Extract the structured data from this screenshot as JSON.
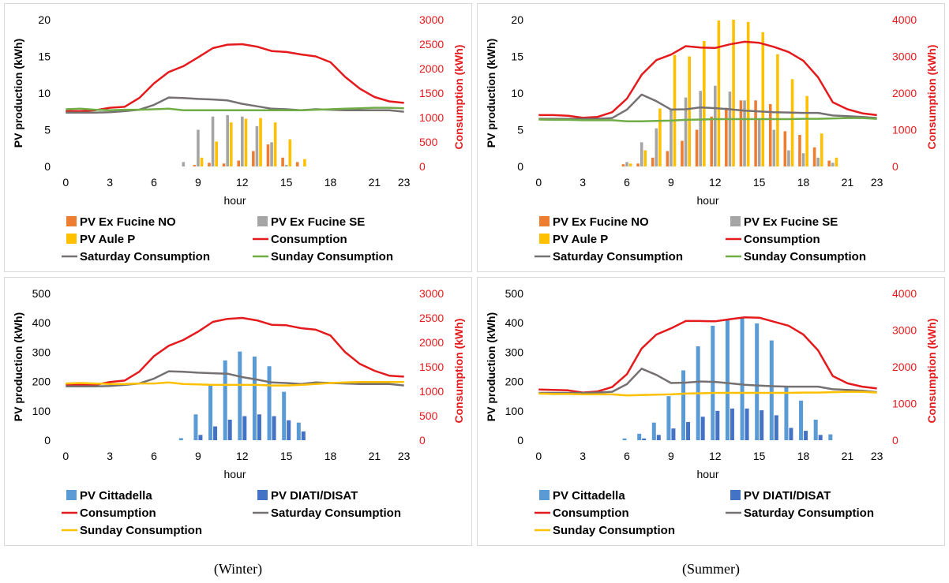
{
  "captions": {
    "left": "(Winter)",
    "right": "(Summer)"
  },
  "chart_data": [
    {
      "type": "bar",
      "xlabel": "hour",
      "ylabel": "PV production (kWh)",
      "y2label": "Consumption (kWh)",
      "ylim": [
        0,
        20
      ],
      "yticks": [
        0,
        5,
        10,
        15,
        20
      ],
      "y2lim": [
        0,
        3000
      ],
      "y2ticks": [
        0,
        500,
        1000,
        1500,
        2000,
        2500,
        3000
      ],
      "xticks": [
        0,
        3,
        6,
        9,
        12,
        15,
        18,
        21,
        23
      ],
      "hours": [
        0,
        1,
        2,
        3,
        4,
        5,
        6,
        7,
        8,
        9,
        10,
        11,
        12,
        13,
        14,
        15,
        16,
        17,
        18,
        19,
        20,
        21,
        22,
        23
      ],
      "legend_columns": 2,
      "legend_order": [
        "PV Ex Fucine NO",
        "PV Ex Fucine SE",
        "PV Aule P",
        "Consumption",
        "Saturday Consumption",
        "Sunday Consumption"
      ],
      "series": [
        {
          "name": "PV Ex Fucine NO",
          "kind": "bar",
          "axis": "left",
          "color": "#ed7d31",
          "values": [
            0,
            0,
            0,
            0,
            0,
            0,
            0,
            0,
            0,
            0.2,
            0.5,
            0.4,
            0.8,
            2.1,
            3.0,
            1.2,
            0.6,
            0,
            0,
            0,
            0,
            0,
            0,
            0
          ]
        },
        {
          "name": "PV Ex Fucine SE",
          "kind": "bar",
          "axis": "left",
          "color": "#a5a5a5",
          "values": [
            0,
            0,
            0,
            0,
            0,
            0,
            0,
            0,
            0.6,
            5.0,
            6.8,
            7.0,
            6.8,
            5.5,
            3.3,
            0.2,
            0,
            0,
            0,
            0,
            0,
            0,
            0,
            0
          ]
        },
        {
          "name": "PV Aule P",
          "kind": "bar",
          "axis": "left",
          "color": "#ffc000",
          "values": [
            0,
            0,
            0,
            0,
            0,
            0,
            0,
            0,
            0,
            1.2,
            3.4,
            6.0,
            6.5,
            6.6,
            6.0,
            3.7,
            1.0,
            0,
            0,
            0,
            0,
            0,
            0,
            0
          ]
        },
        {
          "name": "Consumption",
          "kind": "line",
          "axis": "right",
          "color": "#e41a1c",
          "values": [
            1130,
            1130,
            1150,
            1200,
            1220,
            1400,
            1700,
            1930,
            2050,
            2230,
            2420,
            2490,
            2500,
            2450,
            2360,
            2340,
            2290,
            2250,
            2130,
            1830,
            1590,
            1420,
            1330,
            1300
          ]
        },
        {
          "name": "Saturday Consumption",
          "kind": "line",
          "axis": "right",
          "color": "#767171",
          "values": [
            1100,
            1100,
            1100,
            1110,
            1130,
            1160,
            1260,
            1410,
            1400,
            1380,
            1370,
            1350,
            1280,
            1230,
            1180,
            1170,
            1150,
            1170,
            1160,
            1150,
            1150,
            1150,
            1150,
            1120
          ]
        },
        {
          "name": "Sunday Consumption",
          "kind": "line",
          "axis": "right",
          "color": "#70ad47",
          "values": [
            1170,
            1180,
            1160,
            1150,
            1160,
            1160,
            1170,
            1180,
            1150,
            1150,
            1150,
            1150,
            1150,
            1150,
            1150,
            1150,
            1150,
            1160,
            1170,
            1180,
            1190,
            1200,
            1200,
            1190
          ]
        }
      ]
    },
    {
      "type": "bar",
      "xlabel": "hour",
      "ylabel": "PV production (kWh)",
      "y2label": "Consumption (kWh)",
      "ylim": [
        0,
        20
      ],
      "yticks": [
        0,
        5,
        10,
        15,
        20
      ],
      "y2lim": [
        0,
        4000
      ],
      "y2ticks": [
        0,
        1000,
        2000,
        3000,
        4000
      ],
      "xticks": [
        0,
        3,
        6,
        9,
        12,
        15,
        18,
        21,
        23
      ],
      "hours": [
        0,
        1,
        2,
        3,
        4,
        5,
        6,
        7,
        8,
        9,
        10,
        11,
        12,
        13,
        14,
        15,
        16,
        17,
        18,
        19,
        20,
        21,
        22,
        23
      ],
      "legend_columns": 2,
      "legend_order": [
        "PV Ex Fucine NO",
        "PV Ex Fucine SE",
        "PV Aule P",
        "Consumption",
        "Saturday Consumption",
        "Sunday Consumption"
      ],
      "series": [
        {
          "name": "PV Ex Fucine NO",
          "kind": "bar",
          "axis": "left",
          "color": "#ed7d31",
          "values": [
            0,
            0,
            0,
            0,
            0,
            0,
            0.3,
            0.4,
            1.2,
            2.1,
            3.5,
            5.0,
            6.8,
            8.0,
            9.0,
            9.0,
            8.5,
            4.8,
            4.3,
            2.6,
            0.8,
            0,
            0,
            0
          ]
        },
        {
          "name": "PV Ex Fucine SE",
          "kind": "bar",
          "axis": "left",
          "color": "#a5a5a5",
          "values": [
            0,
            0,
            0,
            0,
            0,
            0,
            0.6,
            3.3,
            5.2,
            7.7,
            9.4,
            10.3,
            11.0,
            10.2,
            9.0,
            6.5,
            5.0,
            2.2,
            1.8,
            1.2,
            0.5,
            0,
            0,
            0
          ]
        },
        {
          "name": "PV Aule P",
          "kind": "bar",
          "axis": "left",
          "color": "#ffc000",
          "values": [
            0,
            0,
            0,
            0,
            0,
            0,
            0.4,
            2.2,
            7.9,
            15.2,
            15.0,
            17.1,
            19.9,
            20.0,
            19.7,
            18.3,
            15.3,
            11.9,
            9.6,
            4.5,
            1.2,
            0,
            0,
            0
          ]
        },
        {
          "name": "Consumption",
          "kind": "line",
          "axis": "right",
          "color": "#e41a1c",
          "values": [
            1400,
            1400,
            1380,
            1330,
            1350,
            1480,
            1850,
            2500,
            2900,
            3050,
            3280,
            3240,
            3230,
            3330,
            3400,
            3370,
            3260,
            3120,
            2880,
            2430,
            1750,
            1560,
            1450,
            1400
          ]
        },
        {
          "name": "Saturday Consumption",
          "kind": "line",
          "axis": "right",
          "color": "#767171",
          "values": [
            1300,
            1300,
            1300,
            1300,
            1300,
            1320,
            1550,
            1960,
            1780,
            1550,
            1560,
            1610,
            1590,
            1560,
            1520,
            1500,
            1480,
            1470,
            1460,
            1460,
            1390,
            1370,
            1350,
            1320
          ]
        },
        {
          "name": "Sunday Consumption",
          "kind": "line",
          "axis": "right",
          "color": "#70ad47",
          "values": [
            1280,
            1270,
            1270,
            1260,
            1260,
            1260,
            1230,
            1230,
            1240,
            1250,
            1270,
            1280,
            1290,
            1290,
            1290,
            1290,
            1290,
            1290,
            1300,
            1300,
            1310,
            1320,
            1320,
            1300
          ]
        }
      ]
    },
    {
      "type": "bar",
      "xlabel": "hour",
      "ylabel": "PV production (kWh)",
      "y2label": "Consumption (kWh)",
      "ylim": [
        0,
        500
      ],
      "yticks": [
        0,
        100,
        200,
        300,
        400,
        500
      ],
      "y2lim": [
        0,
        3000
      ],
      "y2ticks": [
        0,
        500,
        1000,
        1500,
        2000,
        2500,
        3000
      ],
      "xticks": [
        0,
        3,
        6,
        9,
        12,
        15,
        18,
        21,
        23
      ],
      "hours": [
        0,
        1,
        2,
        3,
        4,
        5,
        6,
        7,
        8,
        9,
        10,
        11,
        12,
        13,
        14,
        15,
        16,
        17,
        18,
        19,
        20,
        21,
        22,
        23
      ],
      "legend_columns": 2,
      "legend_order": [
        "PV Cittadella",
        "PV DIATI/DISAT",
        "Consumption",
        "Saturday Consumption",
        "Sunday Consumption"
      ],
      "series": [
        {
          "name": "PV Cittadella",
          "kind": "bar",
          "axis": "left",
          "color": "#5b9bd5",
          "values": [
            0,
            0,
            0,
            0,
            0,
            0,
            0,
            0,
            7,
            88,
            188,
            272,
            302,
            285,
            252,
            165,
            60,
            0,
            0,
            0,
            0,
            0,
            0,
            0
          ]
        },
        {
          "name": "PV DIATI/DISAT",
          "kind": "bar",
          "axis": "left",
          "color": "#4472c4",
          "values": [
            0,
            0,
            0,
            0,
            0,
            0,
            0,
            0,
            0,
            18,
            47,
            70,
            82,
            88,
            82,
            68,
            30,
            0,
            0,
            0,
            0,
            0,
            0,
            0
          ]
        },
        {
          "name": "Consumption",
          "kind": "line",
          "axis": "right",
          "color": "#e41a1c",
          "values": [
            1140,
            1140,
            1130,
            1190,
            1220,
            1400,
            1720,
            1930,
            2050,
            2220,
            2420,
            2480,
            2500,
            2450,
            2360,
            2350,
            2290,
            2260,
            2140,
            1800,
            1560,
            1420,
            1320,
            1300
          ]
        },
        {
          "name": "Saturday Consumption",
          "kind": "line",
          "axis": "right",
          "color": "#767171",
          "values": [
            1100,
            1100,
            1100,
            1110,
            1130,
            1160,
            1260,
            1410,
            1400,
            1380,
            1370,
            1360,
            1290,
            1240,
            1180,
            1170,
            1150,
            1180,
            1170,
            1160,
            1150,
            1150,
            1150,
            1120
          ]
        },
        {
          "name": "Sunday Consumption",
          "kind": "line",
          "axis": "right",
          "color": "#ffc000",
          "values": [
            1160,
            1170,
            1160,
            1150,
            1150,
            1160,
            1160,
            1180,
            1150,
            1140,
            1130,
            1130,
            1130,
            1130,
            1120,
            1120,
            1130,
            1150,
            1170,
            1180,
            1190,
            1190,
            1190,
            1190
          ]
        }
      ]
    },
    {
      "type": "bar",
      "xlabel": "hour",
      "ylabel": "PV production (kWh)",
      "y2label": "Consumption (kWh)",
      "ylim": [
        0,
        500
      ],
      "yticks": [
        0,
        100,
        200,
        300,
        400,
        500
      ],
      "y2lim": [
        0,
        4000
      ],
      "y2ticks": [
        0,
        1000,
        2000,
        3000,
        4000
      ],
      "xticks": [
        0,
        3,
        6,
        9,
        12,
        15,
        18,
        21,
        23
      ],
      "hours": [
        0,
        1,
        2,
        3,
        4,
        5,
        6,
        7,
        8,
        9,
        10,
        11,
        12,
        13,
        14,
        15,
        16,
        17,
        18,
        19,
        20,
        21,
        22,
        23
      ],
      "legend_columns": 2,
      "legend_order": [
        "PV Cittadella",
        "PV DIATI/DISAT",
        "Consumption",
        "Saturday Consumption",
        "Sunday Consumption"
      ],
      "series": [
        {
          "name": "PV Cittadella",
          "kind": "bar",
          "axis": "left",
          "color": "#5b9bd5",
          "values": [
            0,
            0,
            0,
            0,
            0,
            0,
            6,
            22,
            60,
            150,
            238,
            320,
            390,
            410,
            418,
            398,
            340,
            185,
            135,
            70,
            20,
            0,
            0,
            0
          ]
        },
        {
          "name": "PV DIATI/DISAT",
          "kind": "bar",
          "axis": "left",
          "color": "#4472c4",
          "values": [
            0,
            0,
            0,
            0,
            0,
            0,
            0,
            6,
            18,
            40,
            62,
            80,
            100,
            108,
            108,
            102,
            85,
            42,
            32,
            18,
            0,
            0,
            0,
            0
          ]
        },
        {
          "name": "Consumption",
          "kind": "line",
          "axis": "right",
          "color": "#e41a1c",
          "values": [
            1380,
            1370,
            1360,
            1300,
            1330,
            1450,
            1800,
            2500,
            2880,
            3050,
            3250,
            3250,
            3240,
            3300,
            3350,
            3340,
            3230,
            3120,
            2880,
            2450,
            1750,
            1550,
            1460,
            1410
          ]
        },
        {
          "name": "Saturday Consumption",
          "kind": "line",
          "axis": "right",
          "color": "#767171",
          "values": [
            1290,
            1290,
            1290,
            1290,
            1300,
            1320,
            1530,
            1950,
            1780,
            1560,
            1570,
            1600,
            1590,
            1550,
            1510,
            1490,
            1470,
            1460,
            1460,
            1460,
            1390,
            1370,
            1350,
            1310
          ]
        },
        {
          "name": "Sunday Consumption",
          "kind": "line",
          "axis": "right",
          "color": "#ffc000",
          "values": [
            1270,
            1260,
            1260,
            1250,
            1250,
            1250,
            1220,
            1230,
            1240,
            1250,
            1270,
            1280,
            1290,
            1290,
            1290,
            1290,
            1290,
            1290,
            1300,
            1300,
            1310,
            1320,
            1320,
            1300
          ]
        }
      ]
    }
  ]
}
